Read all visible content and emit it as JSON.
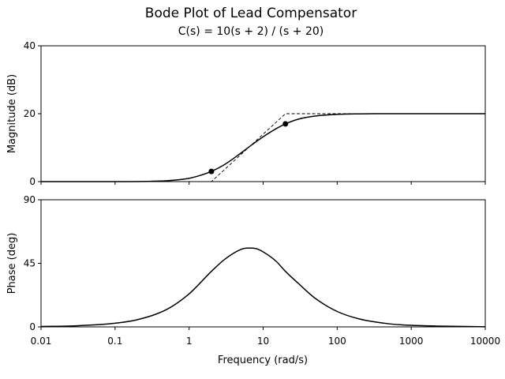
{
  "chart_data": {
    "type": "line",
    "title": "Bode Plot of Lead Compensator",
    "subtitle": "C(s) = 10(s + 2) / (s + 20)",
    "xlabel": "Frequency (rad/s)",
    "x_scale": "log",
    "xlim": [
      0.01,
      10000
    ],
    "x_ticks": [
      0.01,
      0.1,
      1,
      10,
      100,
      1000,
      10000
    ],
    "x_tick_labels": [
      "0.01",
      "0.1",
      "1",
      "10",
      "100",
      "1000",
      "10000"
    ],
    "panels": [
      {
        "ylabel": "Magnitude (dB)",
        "ylim": [
          0,
          40
        ],
        "y_ticks": [
          0,
          20,
          40
        ],
        "y_tick_labels": [
          "0",
          "20",
          "40"
        ],
        "series": [
          {
            "style": "solid",
            "color": "#000000",
            "x": [
              0.01,
              0.03,
              0.1,
              0.3,
              0.5,
              1,
              1.5,
              2,
              3,
              5,
              7,
              10,
              15,
              20,
              30,
              50,
              100,
              200,
              500,
              1000,
              10000
            ],
            "y": [
              0,
              0,
              0.01,
              0.1,
              0.27,
              0.97,
              2.0,
              3.0,
              5.0,
              8.4,
              10.8,
              13.2,
              15.6,
              17.0,
              18.4,
              19.3,
              19.8,
              19.95,
              20.0,
              20.0,
              20.0
            ]
          },
          {
            "style": "dashed",
            "color": "#000000",
            "x": [
              0.01,
              2,
              20,
              10000
            ],
            "y": [
              0,
              0,
              20,
              20
            ]
          }
        ],
        "markers": [
          {
            "x": 2,
            "y": 3.0
          },
          {
            "x": 20,
            "y": 17.0
          }
        ]
      },
      {
        "ylabel": "Phase (deg)",
        "ylim": [
          0,
          90
        ],
        "y_ticks": [
          0,
          45,
          90
        ],
        "y_tick_labels": [
          "0",
          "45",
          "90"
        ],
        "series": [
          {
            "style": "solid",
            "color": "#000000",
            "x": [
              0.01,
              0.03,
              0.1,
              0.2,
              0.5,
              1,
              2,
              3,
              5,
              6.32,
              8,
              10,
              15,
              20,
              30,
              50,
              100,
              200,
              500,
              1000,
              10000
            ],
            "y": [
              0.26,
              0.77,
              2.6,
              5.1,
              12.4,
              23.4,
              39.3,
              47.7,
              54.8,
              55.8,
              55.4,
              53.1,
              46.4,
              39.3,
              30.7,
              20.4,
              10.9,
              5.6,
              2.2,
              1.1,
              0.1
            ]
          }
        ]
      }
    ]
  }
}
